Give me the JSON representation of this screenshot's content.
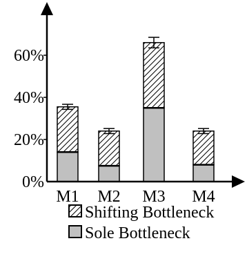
{
  "chart_data": {
    "type": "bar",
    "stacked": true,
    "categories": [
      "M1",
      "M2",
      "M3",
      "M4"
    ],
    "series": [
      {
        "name": "Sole Bottleneck",
        "values": [
          14,
          7.5,
          35,
          8
        ],
        "color": "#c0c0c0",
        "fill": "solid"
      },
      {
        "name": "Shifting Bottleneck",
        "values": [
          21.5,
          16.5,
          31,
          16
        ],
        "color": "#ffffff",
        "fill": "hatched"
      }
    ],
    "error_bars": [
      1.2,
      1.2,
      2.5,
      1.2
    ],
    "ylim": [
      0,
      75
    ],
    "yticks": [
      0,
      20,
      40,
      60
    ],
    "ytick_labels": [
      "0%",
      "20%",
      "40%",
      "60%"
    ],
    "legend": {
      "position": "bottom",
      "entries": [
        "Shifting Bottleneck",
        "Sole Bottleneck"
      ]
    },
    "grid": false
  }
}
